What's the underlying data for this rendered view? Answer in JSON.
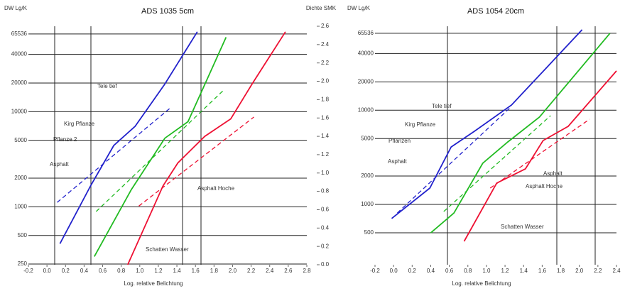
{
  "chart_data": [
    {
      "type": "line",
      "title": "ADS 1035 5cm",
      "y_label": "DW Lg/K",
      "y2_label": "Dichte SMK",
      "x_label": "Log. relative Belichtung",
      "log_y": true,
      "grid": true,
      "xlim": [
        -0.2,
        2.8
      ],
      "xticks": [
        -0.2,
        {
          "value": 0,
          "label": "0.0"
        },
        0.2,
        0.4,
        0.6,
        0.8,
        {
          "value": 1,
          "label": "1.0"
        },
        1.2,
        1.4,
        1.6,
        1.8,
        {
          "value": 2,
          "label": "2.0"
        },
        2.2,
        2.4,
        2.6,
        2.8
      ],
      "ylim": [
        246,
        79000
      ],
      "yticks": [
        65536,
        40000,
        20000,
        10000,
        5000,
        2000,
        1000,
        500,
        250
      ],
      "y2lim": [
        0,
        2.6
      ],
      "y2ticks": [
        2.6,
        2.4,
        2.2,
        {
          "value": 2,
          "label": "2.0"
        },
        1.8,
        1.6,
        1.4,
        1.2,
        {
          "value": 1,
          "label": "1.0"
        },
        0.8,
        0.6,
        0.4,
        0.2,
        {
          "value": 0,
          "label": "0.0"
        }
      ],
      "series": [
        {
          "color": "#2222cc",
          "axis": "y2",
          "dashed": false,
          "x": [
            0.14,
            0.47,
            0.72,
            0.95,
            1.27,
            1.62
          ],
          "values": [
            0.23,
            0.86,
            1.3,
            1.51,
            1.97,
            2.54
          ]
        },
        {
          "color": "#2222cc",
          "axis": "y2",
          "dashed": true,
          "x": [
            0.11,
            1.33
          ],
          "values": [
            0.68,
            1.71
          ]
        },
        {
          "color": "#22bb22",
          "axis": "y2",
          "dashed": false,
          "x": [
            0.51,
            0.91,
            1.27,
            1.52,
            1.93
          ],
          "values": [
            0.09,
            0.82,
            1.38,
            1.56,
            2.48
          ]
        },
        {
          "color": "#22bb22",
          "axis": "y2",
          "dashed": true,
          "x": [
            0.53,
            1.9
          ],
          "values": [
            0.58,
            1.9
          ]
        },
        {
          "color": "#ee1133",
          "axis": "y2",
          "dashed": false,
          "x": [
            0.87,
            1.25,
            1.41,
            1.7,
            1.98,
            2.21,
            2.57
          ],
          "values": [
            0.0,
            0.86,
            1.11,
            1.4,
            1.59,
            1.97,
            2.54
          ]
        },
        {
          "color": "#ee1133",
          "axis": "y2",
          "dashed": true,
          "x": [
            0.99,
            2.23
          ],
          "values": [
            0.64,
            1.61
          ]
        }
      ],
      "annotations": [
        "Tele tief",
        "Kirg Pflanze",
        "Pflanze 2",
        "Asphalt",
        "Asphalt Hoche",
        "Schatten Wasser"
      ]
    },
    {
      "type": "line",
      "title": "ADS 1054 20cm",
      "y_label": "DW Lg/K",
      "x_label": "Log. relative Belichtung",
      "log_y": true,
      "grid": true,
      "xlim": [
        -0.2,
        2.4
      ],
      "xticks": [
        -0.2,
        {
          "value": 0,
          "label": "0.0"
        },
        0.2,
        0.4,
        0.6,
        0.8,
        {
          "value": 1,
          "label": "1.0"
        },
        1.2,
        1.4,
        1.6,
        1.8,
        {
          "value": 2,
          "label": "2.0"
        },
        2.2,
        2.4
      ],
      "ylim": [
        229,
        77800
      ],
      "yticks": [
        65536,
        40000,
        20000,
        10000,
        5000,
        2000,
        1000,
        500
      ],
      "series": [
        {
          "color": "#2222cc",
          "dashed": false,
          "x": [
            -0.02,
            0.39,
            0.62,
            0.87,
            1.27,
            2.03
          ],
          "values": [
            710,
            1490,
            4070,
            5970,
            11350,
            71400
          ]
        },
        {
          "color": "#2222cc",
          "dashed": true,
          "x": [
            0.04,
            1.27
          ],
          "values": [
            811,
            10960
          ]
        },
        {
          "color": "#22bb22",
          "dashed": false,
          "x": [
            0.4,
            0.65,
            0.96,
            1.23,
            1.57,
            2.33
          ],
          "values": [
            499,
            811,
            2735,
            4600,
            8450,
            65536
          ]
        },
        {
          "color": "#22bb22",
          "dashed": true,
          "x": [
            0.54,
            1.69
          ],
          "values": [
            841,
            8750
          ]
        },
        {
          "color": "#ee1133",
          "dashed": false,
          "x": [
            0.76,
            1.11,
            1.42,
            1.61,
            1.88,
            2.4
          ],
          "values": [
            406,
            1683,
            2384,
            4764,
            6745,
            26120
          ]
        },
        {
          "color": "#ee1133",
          "dashed": true,
          "x": [
            1.04,
            2.11
          ],
          "values": [
            1490,
            8020
          ]
        }
      ],
      "annotations": [
        "Tele tief",
        "Kirg Pflanze",
        "Pflanzen",
        "Asphalt",
        "Asphalt",
        "Asphalt Hoche",
        "Schatten Wasser"
      ]
    }
  ]
}
